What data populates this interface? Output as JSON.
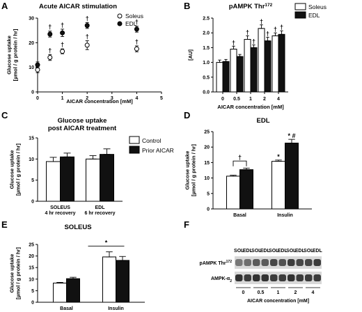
{
  "panels": {
    "A": {
      "letter": "A"
    },
    "B": {
      "letter": "B"
    },
    "C": {
      "letter": "C"
    },
    "D": {
      "letter": "D"
    },
    "E": {
      "letter": "E"
    },
    "F": {
      "letter": "F"
    }
  },
  "chart_data": [
    {
      "id": "A",
      "type": "scatter",
      "title": "Acute AICAR stimulation",
      "xlabel": "AICAR concentration [mM]",
      "ylabel": [
        "Glucose uptake",
        "[µmol / g protein / hr]"
      ],
      "xlim": [
        0,
        5
      ],
      "ylim": [
        0,
        30
      ],
      "xticks": [
        0,
        1,
        2,
        3,
        4,
        5
      ],
      "yticks": [
        0,
        10,
        20,
        30
      ],
      "legend_position": "top-right",
      "series": [
        {
          "name": "Soleus",
          "style": "open",
          "x": [
            0,
            0.5,
            1,
            2,
            4
          ],
          "y": [
            9,
            14,
            16.5,
            19,
            17.5
          ],
          "err": [
            1.2,
            1.2,
            1,
            1.8,
            1.2
          ],
          "marks": [
            "",
            "†",
            "†",
            "†",
            "†"
          ]
        },
        {
          "name": "EDL",
          "style": "filled",
          "x": [
            0,
            0.5,
            1,
            2,
            4
          ],
          "y": [
            11,
            23.5,
            24,
            27,
            25.5
          ],
          "err": [
            1.2,
            1.2,
            1.5,
            1.2,
            1.2
          ],
          "marks": [
            "",
            "†",
            "†",
            "†",
            "†"
          ]
        }
      ]
    },
    {
      "id": "B",
      "type": "bar",
      "title": "pAMPK Thr",
      "title_sup": "172",
      "xlabel": "AICAR concentration [mM]",
      "ylabel": [
        "[AU]"
      ],
      "ylim": [
        0,
        2.5
      ],
      "yticks": [
        0.0,
        0.5,
        1.0,
        1.5,
        2.0,
        2.5
      ],
      "categories": [
        "0",
        "0.5",
        "1",
        "2",
        "4"
      ],
      "legend_position": "top-right",
      "series": [
        {
          "name": "Soleus",
          "style": "open",
          "values": [
            1.0,
            1.45,
            1.78,
            2.15,
            1.9
          ],
          "err": [
            0.08,
            0.1,
            0.12,
            0.12,
            0.1
          ],
          "marks": [
            "",
            "†",
            "†",
            "†",
            "†"
          ]
        },
        {
          "name": "EDL",
          "style": "filled",
          "values": [
            1.03,
            1.2,
            1.5,
            1.73,
            1.95
          ],
          "err": [
            0.07,
            0.07,
            0.09,
            0.12,
            0.12
          ],
          "marks": [
            "",
            "",
            "†",
            "†",
            "†"
          ]
        }
      ]
    },
    {
      "id": "C",
      "type": "bar",
      "title": [
        "Glucose uptake",
        "post AICAR treatment"
      ],
      "ylabel": [
        "Glucose uptake",
        "[µmol / g protein / hr]"
      ],
      "ylim": [
        0,
        15
      ],
      "yticks": [
        0,
        5,
        10,
        15
      ],
      "categories": [
        [
          "SOLEUS",
          "4 hr recovery"
        ],
        [
          "EDL",
          "6 hr recovery"
        ]
      ],
      "legend_position": "right",
      "series": [
        {
          "name": "Control",
          "style": "open",
          "values": [
            9.4,
            10.0
          ],
          "err": [
            1.0,
            0.8
          ]
        },
        {
          "name": "Prior AICAR",
          "style": "filled",
          "values": [
            10.5,
            11.1
          ],
          "err": [
            0.9,
            1.3
          ]
        }
      ]
    },
    {
      "id": "D",
      "type": "bar",
      "title": "EDL",
      "ylabel": [
        "Glucose uptake",
        "[µmol / g protein / hr]"
      ],
      "ylim": [
        0,
        25
      ],
      "yticks": [
        0,
        5,
        10,
        15,
        20,
        25
      ],
      "categories": [
        "Basal",
        "Insulin"
      ],
      "series": [
        {
          "name": "Control",
          "style": "open",
          "values": [
            10.6,
            15.4
          ],
          "err": [
            0.3,
            0.4
          ],
          "marks": [
            "",
            "*"
          ]
        },
        {
          "name": "Prior AICAR",
          "style": "filled",
          "values": [
            12.7,
            21.3
          ],
          "err": [
            0.5,
            1.2
          ],
          "marks": [
            "",
            "* #"
          ]
        }
      ],
      "annotations": [
        {
          "type": "bracket",
          "group": 0,
          "label": "†"
        }
      ]
    },
    {
      "id": "E",
      "type": "bar",
      "title": "SOLEUS",
      "ylabel": [
        "Glucose uptake",
        "[µmol / g protein / hr]"
      ],
      "ylim": [
        0,
        25
      ],
      "yticks": [
        0,
        5,
        10,
        15,
        20,
        25
      ],
      "categories": [
        "Basal",
        "Insulin"
      ],
      "series": [
        {
          "name": "Control",
          "style": "open",
          "values": [
            8.3,
            19.6
          ],
          "err": [
            0.3,
            2.2
          ]
        },
        {
          "name": "Prior AICAR",
          "style": "filled",
          "values": [
            10.2,
            18.1
          ],
          "err": [
            0.6,
            1.7
          ]
        }
      ],
      "annotations": [
        {
          "type": "line",
          "label": "*"
        }
      ]
    },
    {
      "id": "F",
      "type": "blot",
      "lanes": [
        "SOL",
        "EDL",
        "SOL",
        "EDL",
        "SOL",
        "EDL",
        "SOL",
        "EDL",
        "SOL",
        "EDL"
      ],
      "rows": [
        {
          "label": "pAMPK Thr",
          "sup": "172",
          "intensity": [
            0.55,
            0.6,
            0.7,
            0.7,
            0.8,
            0.75,
            0.85,
            0.8,
            0.8,
            0.85
          ]
        },
        {
          "label": "AMPK-α",
          "sub": "2",
          "intensity": [
            0.9,
            0.85,
            0.9,
            0.9,
            0.85,
            0.85,
            0.9,
            0.85,
            0.85,
            0.85
          ]
        }
      ],
      "groups": [
        "0",
        "0.5",
        "1",
        "2",
        "4"
      ],
      "xlabel": "AICAR concentration [mM]"
    }
  ]
}
